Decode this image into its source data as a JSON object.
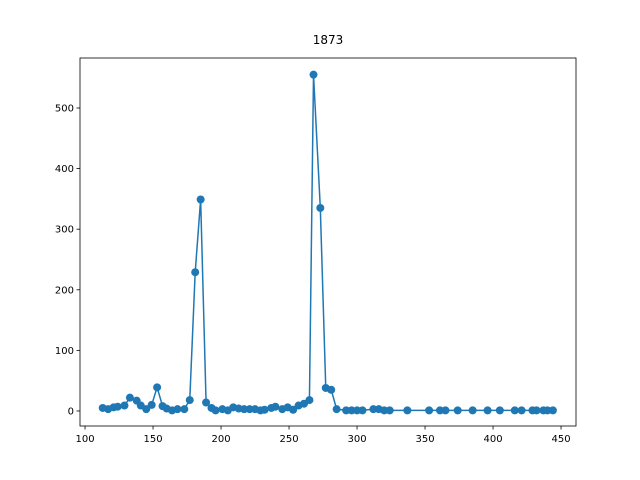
{
  "chart_data": {
    "type": "line",
    "title": "1873",
    "color": "#1f77b4",
    "x": [
      113,
      117,
      121,
      124,
      129,
      133,
      138,
      141,
      145,
      149,
      153,
      157,
      160,
      164,
      168,
      173,
      177,
      181,
      185,
      189,
      193,
      196,
      201,
      205,
      209,
      213,
      217,
      221,
      225,
      229,
      232,
      237,
      240,
      245,
      249,
      253,
      257,
      261,
      265,
      268,
      273,
      277,
      281,
      285,
      292,
      296,
      300,
      304,
      312,
      316,
      320,
      324,
      337,
      353,
      361,
      365,
      374,
      385,
      396,
      405,
      416,
      421,
      429,
      432,
      437,
      440,
      444
    ],
    "values": [
      5,
      3,
      6,
      7,
      9,
      22,
      17,
      9,
      3,
      10,
      39,
      8,
      4,
      1,
      3,
      3,
      18,
      229,
      349,
      14,
      5,
      1,
      3,
      1,
      6,
      4,
      3,
      3,
      3,
      1,
      2,
      5,
      7,
      3,
      6,
      2,
      9,
      12,
      18,
      555,
      335,
      38,
      35,
      3,
      1,
      1,
      1,
      1,
      3,
      3,
      1,
      1,
      1,
      1,
      1,
      1,
      1,
      1,
      1,
      1,
      1,
      1,
      1,
      1,
      1,
      1,
      1
    ],
    "xlim": [
      96.3,
      461
    ],
    "ylim": [
      -24.8,
      582.5
    ],
    "xticks": [
      100,
      150,
      200,
      250,
      300,
      350,
      400,
      450
    ],
    "yticks": [
      0,
      100,
      200,
      300,
      400,
      500
    ]
  }
}
